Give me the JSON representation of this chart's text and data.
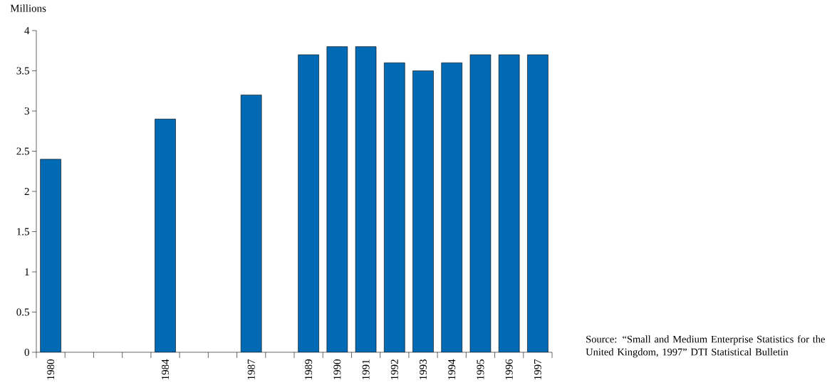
{
  "chart_data": {
    "type": "bar",
    "ylabel": "Millions",
    "categories": [
      "1980",
      null,
      null,
      null,
      "1984",
      null,
      null,
      "1987",
      null,
      "1989",
      "1990",
      "1991",
      "1992",
      "1993",
      "1994",
      "1995",
      "1996",
      "1997"
    ],
    "values": [
      2.4,
      null,
      null,
      null,
      2.9,
      null,
      null,
      3.2,
      null,
      3.7,
      3.8,
      3.8,
      3.6,
      3.5,
      3.6,
      3.7,
      3.7,
      3.7
    ],
    "color": "#006ab4",
    "ylim": [
      0,
      4
    ],
    "yticks": [
      0,
      0.5,
      1,
      1.5,
      2,
      2.5,
      3,
      3.5,
      4
    ],
    "grid": false,
    "annotations": [
      "Source:  “Small and Medium Enterprise Statistics for the United Kingdom, 1997” DTI Statistical Bulletin"
    ]
  }
}
